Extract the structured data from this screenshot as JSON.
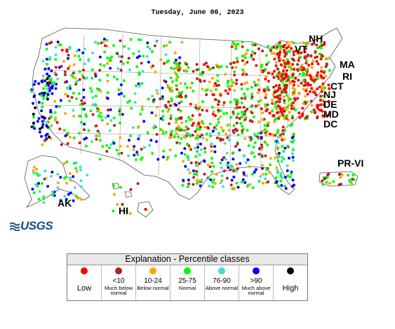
{
  "map": {
    "date": "Tuesday, June 06, 2023",
    "state_labels": [
      "NH",
      "VT",
      "MA",
      "RI",
      "CT",
      "NJ",
      "DE",
      "MD",
      "DC",
      "PR-VI",
      "AK",
      "HI"
    ],
    "logo_text": "USGS"
  },
  "legend": {
    "title": "Explanation - Percentile classes",
    "classes": [
      {
        "range": "",
        "desc": "",
        "side": "Low",
        "color": "#ff0000"
      },
      {
        "range": "<10",
        "desc": "Much below normal",
        "side": "",
        "color": "#b22222"
      },
      {
        "range": "10-24",
        "desc": "Below normal",
        "side": "",
        "color": "#ffa500"
      },
      {
        "range": "25-75",
        "desc": "Normal",
        "side": "",
        "color": "#00ff00"
      },
      {
        "range": "76-90",
        "desc": "Above normal",
        "side": "",
        "color": "#40e0d0"
      },
      {
        "range": ">90",
        "desc": "Much above normal",
        "side": "",
        "color": "#0000ff"
      },
      {
        "range": "",
        "desc": "",
        "side": "High",
        "color": "#000000"
      }
    ]
  },
  "colors": {
    "low": "#ff0000",
    "much_below": "#b22222",
    "below": "#ffa500",
    "normal": "#00ff00",
    "above": "#40e0d0",
    "much_above": "#0000ff",
    "high": "#000000",
    "logo": "#1c4b82"
  }
}
